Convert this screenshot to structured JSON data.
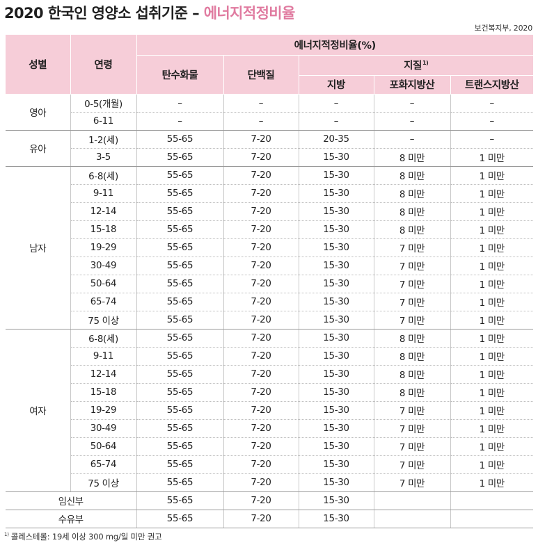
{
  "title": {
    "main": "2020 한국인 영양소 섭취기준 – ",
    "accent": "에너지적정비율"
  },
  "source": "보건복지부, 2020",
  "colors": {
    "header_bg": "#f6cdd8",
    "accent": "#e07ba0"
  },
  "header": {
    "gender": "성별",
    "age": "연령",
    "group": "에너지적정비율(%)",
    "carb": "탄수화물",
    "protein": "단백질",
    "lipid": "지질",
    "lipid_note": "1)",
    "fat": "지방",
    "sat_fat": "포화지방산",
    "trans_fat": "트랜스지방산"
  },
  "rows": [
    [
      "영아",
      "0-5(개월)",
      "–",
      "–",
      "–",
      "–",
      "–"
    ],
    [
      "영아",
      "6-11",
      "–",
      "–",
      "–",
      "–",
      "–"
    ],
    [
      "유아",
      "1-2(세)",
      "55-65",
      "7-20",
      "20-35",
      "–",
      "–"
    ],
    [
      "유아",
      "3-5",
      "55-65",
      "7-20",
      "15-30",
      "8 미만",
      "1 미만"
    ],
    [
      "남자",
      "6-8(세)",
      "55-65",
      "7-20",
      "15-30",
      "8 미만",
      "1 미만"
    ],
    [
      "남자",
      "9-11",
      "55-65",
      "7-20",
      "15-30",
      "8 미만",
      "1 미만"
    ],
    [
      "남자",
      "12-14",
      "55-65",
      "7-20",
      "15-30",
      "8 미만",
      "1 미만"
    ],
    [
      "남자",
      "15-18",
      "55-65",
      "7-20",
      "15-30",
      "8 미만",
      "1 미만"
    ],
    [
      "남자",
      "19-29",
      "55-65",
      "7-20",
      "15-30",
      "7 미만",
      "1 미만"
    ],
    [
      "남자",
      "30-49",
      "55-65",
      "7-20",
      "15-30",
      "7 미만",
      "1 미만"
    ],
    [
      "남자",
      "50-64",
      "55-65",
      "7-20",
      "15-30",
      "7 미만",
      "1 미만"
    ],
    [
      "남자",
      "65-74",
      "55-65",
      "7-20",
      "15-30",
      "7 미만",
      "1 미만"
    ],
    [
      "남자",
      "75 이상",
      "55-65",
      "7-20",
      "15-30",
      "7 미만",
      "1 미만"
    ],
    [
      "여자",
      "6-8(세)",
      "55-65",
      "7-20",
      "15-30",
      "8 미만",
      "1 미만"
    ],
    [
      "여자",
      "9-11",
      "55-65",
      "7-20",
      "15-30",
      "8 미만",
      "1 미만"
    ],
    [
      "여자",
      "12-14",
      "55-65",
      "7-20",
      "15-30",
      "8 미만",
      "1 미만"
    ],
    [
      "여자",
      "15-18",
      "55-65",
      "7-20",
      "15-30",
      "8 미만",
      "1 미만"
    ],
    [
      "여자",
      "19-29",
      "55-65",
      "7-20",
      "15-30",
      "7 미만",
      "1 미만"
    ],
    [
      "여자",
      "30-49",
      "55-65",
      "7-20",
      "15-30",
      "7 미만",
      "1 미만"
    ],
    [
      "여자",
      "50-64",
      "55-65",
      "7-20",
      "15-30",
      "7 미만",
      "1 미만"
    ],
    [
      "여자",
      "65-74",
      "55-65",
      "7-20",
      "15-30",
      "7 미만",
      "1 미만"
    ],
    [
      "여자",
      "75 이상",
      "55-65",
      "7-20",
      "15-30",
      "7 미만",
      "1 미만"
    ],
    [
      "임신부",
      "",
      "55-65",
      "7-20",
      "15-30",
      "",
      ""
    ],
    [
      "수유부",
      "",
      "55-65",
      "7-20",
      "15-30",
      "",
      ""
    ]
  ],
  "footnote": {
    "mark": "1)",
    "text": "콜레스테롤: 19세 이상 300 mg/일 미만 권고"
  }
}
